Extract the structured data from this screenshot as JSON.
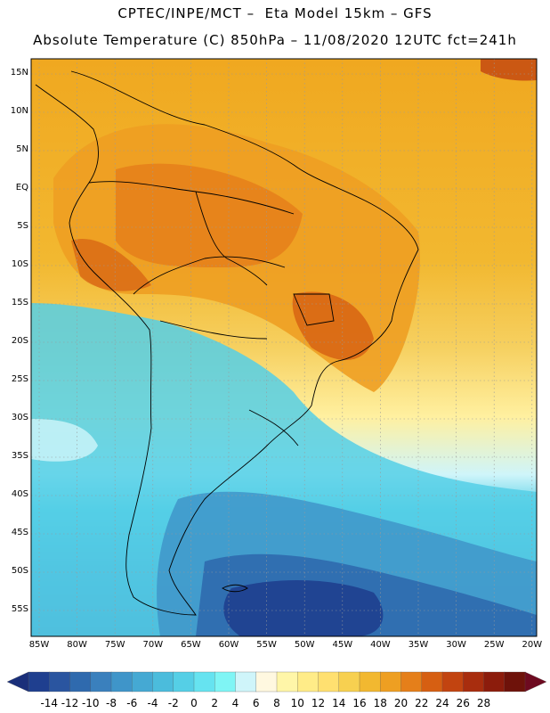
{
  "header": {
    "line1": "CPTEC/INPE/MCT –  Eta Model 15km – GFS",
    "line2": "Absolute Temperature (C) 850hPa – 11/08/2020 12UTC fct=241h"
  },
  "axes": {
    "lat_labels": [
      "15N",
      "10N",
      "5N",
      "EQ",
      "5S",
      "10S",
      "15S",
      "20S",
      "25S",
      "30S",
      "35S",
      "40S",
      "45S",
      "50S",
      "55S"
    ],
    "lon_labels": [
      "85W",
      "80W",
      "75W",
      "70W",
      "65W",
      "60W",
      "55W",
      "50W",
      "45W",
      "40W",
      "35W",
      "30W",
      "25W",
      "20W"
    ]
  },
  "colorbar": {
    "labels": [
      "-14",
      "-12",
      "-10",
      "-8",
      "-6",
      "-4",
      "-2",
      "0",
      "2",
      "4",
      "6",
      "8",
      "10",
      "12",
      "14",
      "16",
      "18",
      "20",
      "22",
      "24",
      "26",
      "28"
    ],
    "colors": [
      "#1f3f8f",
      "#2a55a0",
      "#2f6aae",
      "#3a80bd",
      "#3f95c9",
      "#45a9d3",
      "#4bbcdc",
      "#55cfe6",
      "#66e3f0",
      "#7ff5f5",
      "#cff5fa",
      "#fff8e0",
      "#fff6a8",
      "#ffec88",
      "#ffe070",
      "#f7d050",
      "#f2b830",
      "#ee9f22",
      "#e57f1a",
      "#d65f12",
      "#c24410",
      "#a82d0e",
      "#8c1c0c",
      "#6e120a"
    ]
  }
}
